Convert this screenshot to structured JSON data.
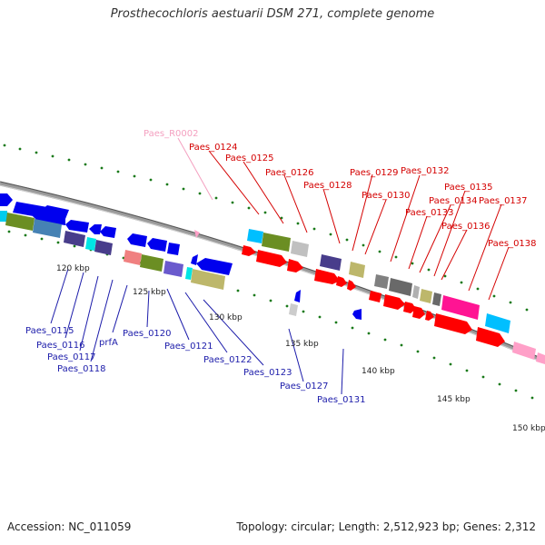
{
  "title": "Prosthecochloris aestuarii DSM 271, complete genome",
  "footer": {
    "accession": "Accession: NC_011059",
    "topology": "Topology: circular; Length: 2,512,923 bp; Genes: 2,312"
  },
  "ticks": [
    "120 kbp",
    "125 kbp",
    "130 kbp",
    "135 kbp",
    "140 kbp",
    "145 kbp",
    "150 kbp"
  ],
  "labels_top": [
    "Paes_0124",
    "Paes_0125",
    "Paes_0126",
    "Paes_0128",
    "Paes_0129",
    "Paes_0130",
    "Paes_0132",
    "Paes_0133",
    "Paes_0134",
    "Paes_0135",
    "Paes_0136",
    "Paes_0137",
    "Paes_0138"
  ],
  "label_rna": "Paes_R0002",
  "labels_bottom": [
    "Paes_0115",
    "Paes_0116",
    "Paes_0117",
    "Paes_0118",
    "prfA",
    "Paes_0120",
    "Paes_0121",
    "Paes_0122",
    "Paes_0123",
    "Paes_0127",
    "Paes_0131"
  ],
  "colors": {
    "forward_strand": "#ff0000",
    "reverse_strand": "#0000ee",
    "rna_gene": "#ffa0c8",
    "top_label": "#d40000",
    "bottom_label": "#1c1caa",
    "backbone": "#9a9a9a",
    "tick_dot": "#1a7a1a"
  }
}
